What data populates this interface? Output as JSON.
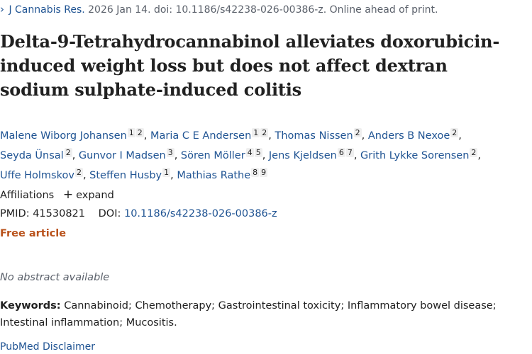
{
  "citation": {
    "journal": "J Cannabis Res.",
    "details": " 2026 Jan 14. doi: 10.1186/s42238-026-00386-z. Online ahead of print."
  },
  "title": "Delta-9-Tetrahydrocannabinol alleviates doxorubicin-induced weight loss but does not affect dextran sodium sulphate-induced colitis",
  "authors": [
    {
      "name": "Malene Wiborg Johansen",
      "affs": [
        "1",
        "2"
      ]
    },
    {
      "name": "Maria C E Andersen",
      "affs": [
        "1",
        "2"
      ]
    },
    {
      "name": "Thomas Nissen",
      "affs": [
        "2"
      ]
    },
    {
      "name": "Anders B Nexoe",
      "affs": [
        "2"
      ]
    },
    {
      "name": "Seyda Ünsal",
      "affs": [
        "2"
      ]
    },
    {
      "name": "Gunvor I Madsen",
      "affs": [
        "3"
      ]
    },
    {
      "name": "Sören Möller",
      "affs": [
        "4",
        "5"
      ]
    },
    {
      "name": "Jens Kjeldsen",
      "affs": [
        "6",
        "7"
      ]
    },
    {
      "name": "Grith Lykke Sorensen",
      "affs": [
        "2"
      ]
    },
    {
      "name": "Uffe Holmskov",
      "affs": [
        "2"
      ]
    },
    {
      "name": "Steffen Husby",
      "affs": [
        "1"
      ]
    },
    {
      "name": "Mathias Rathe",
      "affs": [
        "8",
        "9"
      ]
    }
  ],
  "affiliations": {
    "label": "Affiliations",
    "plus": "+",
    "expand": "expand"
  },
  "ids": {
    "pmid_label": "PMID:",
    "pmid": "41530821",
    "doi_label": "DOI:",
    "doi": "10.1186/s42238-026-00386-z"
  },
  "free_article": "Free article",
  "no_abstract": "No abstract available",
  "keywords": {
    "label": "Keywords:",
    "text": "Cannabinoid; Chemotherapy; Gastrointestinal toxicity; Inflammatory bowel disease; Intestinal inflammation; Mucositis."
  },
  "disclaimer": "PubMed Disclaimer",
  "colors": {
    "link": "#205493",
    "free_article": "#b9521b",
    "muted": "#5b616b"
  }
}
